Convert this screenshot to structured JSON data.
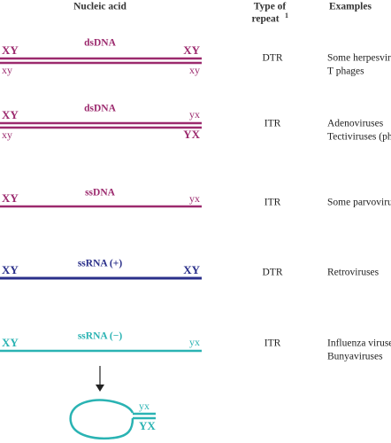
{
  "header": {
    "nucleic_acid": "Nucleic acid",
    "type_lines": [
      "Type of",
      "repeat"
    ],
    "footnote_mark": "1",
    "examples": "Examples"
  },
  "rows": [
    {
      "label": "dsDNA",
      "left_top": "XY",
      "left_bottom": "xy",
      "right_top": "XY",
      "right_bottom": "xy",
      "type": "DTR",
      "examples": [
        "Some herpesviruses",
        "T phages"
      ]
    },
    {
      "label": "dsDNA",
      "left_top": "XY",
      "left_bottom": "xy",
      "right_top": "yx",
      "right_bottom": "YX",
      "type": "ITR",
      "examples": [
        "Adenoviruses",
        "Tectiviruses (phages)"
      ]
    },
    {
      "label": "ssDNA",
      "left_top": "XY",
      "right_top": "yx",
      "type": "ITR",
      "examples": [
        "Some parvoviruses"
      ]
    },
    {
      "label": "ssRNA (+)",
      "left_top": "XY",
      "right_top": "XY",
      "type": "DTR",
      "examples": [
        "Retroviruses"
      ]
    },
    {
      "label": "ssRNA (−)",
      "left_top": "XY",
      "right_top": "yx",
      "type": "ITR",
      "examples": [
        "Influenza viruses",
        "Bunyaviruses"
      ]
    }
  ],
  "panhandle": {
    "top": "yx",
    "bottom": "YX"
  }
}
